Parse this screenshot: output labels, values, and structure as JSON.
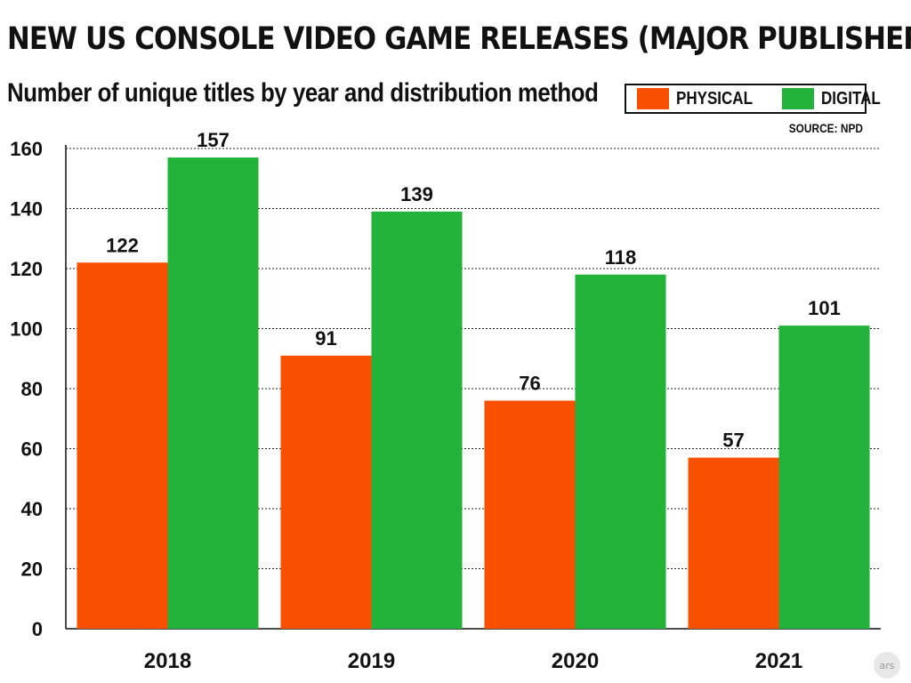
{
  "chart_data": {
    "type": "bar",
    "title": "NEW US CONSOLE VIDEO GAME RELEASES (MAJOR PUBLISHERS)",
    "subtitle": "Number of unique titles by year and distribution method",
    "source": "SOURCE: NPD",
    "categories": [
      "2018",
      "2019",
      "2020",
      "2021"
    ],
    "series": [
      {
        "name": "PHYSICAL",
        "color": "#f95000",
        "values": [
          122,
          91,
          76,
          57
        ]
      },
      {
        "name": "DIGITAL",
        "color": "#23b23a",
        "values": [
          157,
          139,
          118,
          101
        ]
      }
    ],
    "ylim": [
      0,
      160
    ],
    "yticks": [
      0,
      20,
      40,
      60,
      80,
      100,
      120,
      140,
      160
    ],
    "grid": true,
    "legend_position": "top-right"
  },
  "watermark": "ars"
}
